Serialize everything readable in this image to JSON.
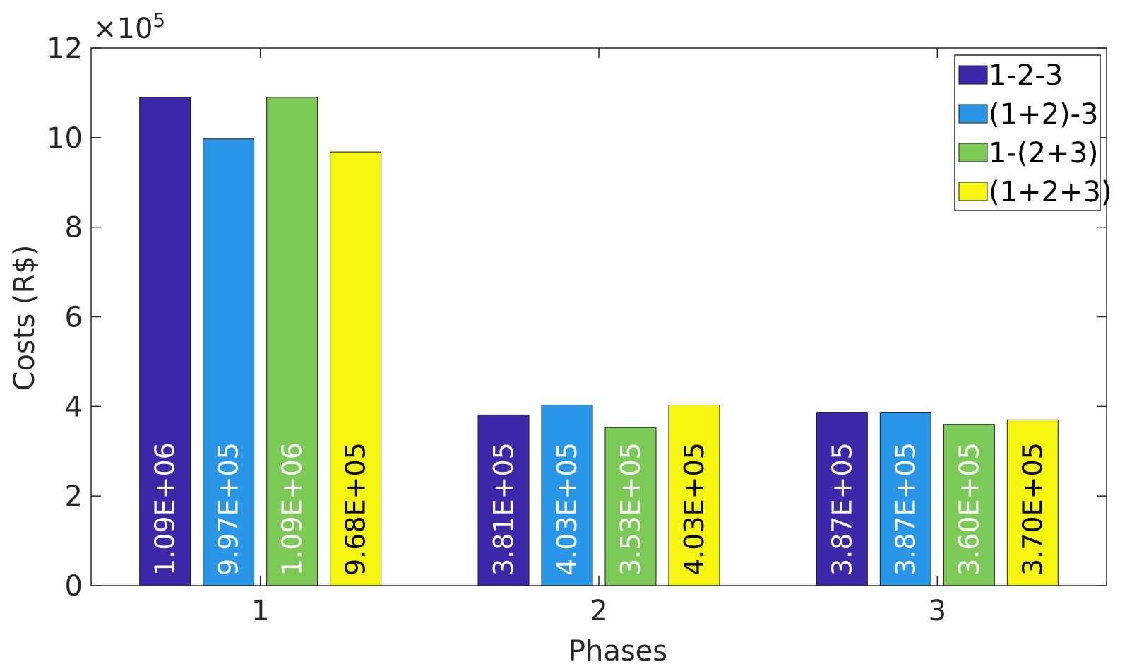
{
  "chart_data": {
    "type": "bar",
    "title": "",
    "xlabel": "Phases",
    "ylabel": "Costs (R$)",
    "exponent_label": "×10",
    "exponent_power": "5",
    "exponent_multiplier": 100000,
    "categories": [
      "1",
      "2",
      "3"
    ],
    "ylim": [
      0,
      12
    ],
    "yticks": [
      "0",
      "2",
      "4",
      "6",
      "8",
      "10",
      "12"
    ],
    "grid": false,
    "legend_position": "top-right",
    "series": [
      {
        "name": "1-2-3",
        "color": "#3c28a8",
        "values": [
          10.9,
          3.81,
          3.87
        ],
        "labels": [
          "1.09E+06",
          "3.81E+05",
          "3.87E+05"
        ],
        "label_color": "#ffffff"
      },
      {
        "name": "(1+2)-3",
        "color": "#2a96e8",
        "values": [
          9.97,
          4.03,
          3.87
        ],
        "labels": [
          "9.97E+05",
          "4.03E+05",
          "3.87E+05"
        ],
        "label_color": "#ffffff"
      },
      {
        "name": "1-(2+3)",
        "color": "#7cc957",
        "values": [
          10.9,
          3.53,
          3.6
        ],
        "labels": [
          "1.09E+06",
          "3.53E+05",
          "3.60E+05"
        ],
        "label_color": "#ffffff"
      },
      {
        "name": "(1+2+3)",
        "color": "#f5f510",
        "values": [
          9.68,
          4.03,
          3.7
        ],
        "labels": [
          "9.68E+05",
          "4.03E+05",
          "3.70E+05"
        ],
        "label_color": "#000000"
      }
    ]
  }
}
